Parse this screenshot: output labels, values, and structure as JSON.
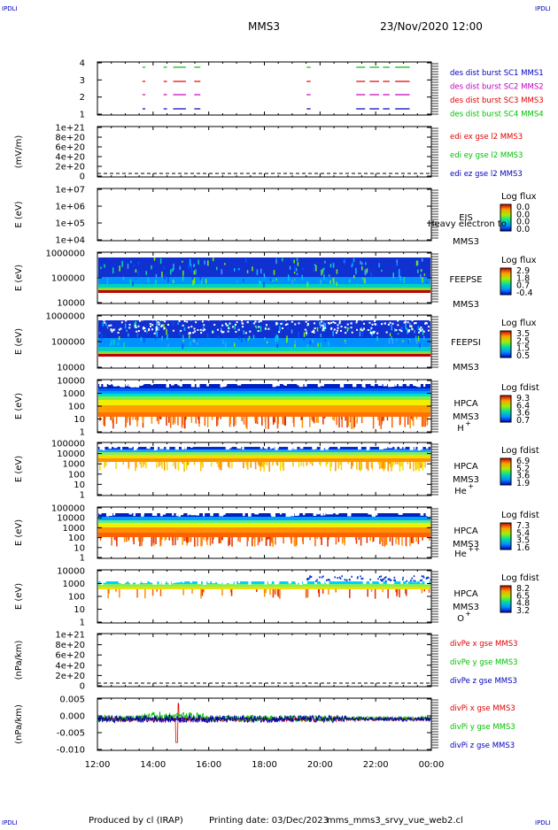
{
  "header": {
    "corner_tl": "IPDLI",
    "corner_tr": "IPDLI",
    "corner_bl": "IPDLI",
    "corner_br": "IPDLI",
    "mission": "MMS3",
    "datetime": "23/Nov/2020 12:00"
  },
  "footer": {
    "produced_by": "Produced by cl (IRAP)",
    "printing_date": "Printing date: 03/Dec/2023",
    "script_name": "mms_mms3_srvy_vue_web2.cl"
  },
  "colors": {
    "red": "#e00000",
    "green": "#00c000",
    "blue": "#0000c0",
    "magenta": "#c000c0"
  },
  "chart_data": [
    {
      "type": "line",
      "panel": "burst-availability",
      "ylabel": "",
      "y_ticks": [
        "1",
        "2",
        "3",
        "4"
      ],
      "xlim": [
        "12:00",
        "00:00"
      ],
      "legend": [
        {
          "label": "des dist burst SC1 MMS1",
          "color": "#0000c0"
        },
        {
          "label": "des dist burst SC2 MMS2",
          "color": "#c000c0"
        },
        {
          "label": "des dist burst SC3 MMS3",
          "color": "#e00000"
        },
        {
          "label": "des dist burst SC4 MMS4",
          "color": "#00c000"
        }
      ],
      "segments_hours": [
        [
          13.62,
          13.72
        ],
        [
          14.38,
          14.5
        ],
        [
          14.72,
          15.18
        ],
        [
          15.48,
          15.7
        ],
        [
          19.52,
          19.66
        ],
        [
          21.3,
          21.62
        ],
        [
          21.78,
          22.12
        ],
        [
          22.26,
          22.5
        ],
        [
          22.7,
          23.22
        ]
      ]
    },
    {
      "type": "line",
      "panel": "edi-e-field",
      "ylabel": "(mV/m)",
      "y_ticks": [
        "0",
        "2e+20",
        "4e+20",
        "6e+20",
        "8e+20",
        "1e+21"
      ],
      "legend": [
        {
          "label": "edi ex gse l2 MMS3",
          "color": "#e00000"
        },
        {
          "label": "edi ey gse l2 MMS3",
          "color": "#00c000"
        },
        {
          "label": "edi ez gse l2 MMS3",
          "color": "#0000c0"
        }
      ]
    },
    {
      "type": "heatmap",
      "panel": "eis",
      "ylabel": "E (eV)",
      "y_ticks": [
        "1e+04",
        "1e+05",
        "1e+06",
        "1e+07"
      ],
      "scale": "log",
      "labels": [
        "EIS",
        "MMS3"
      ],
      "overlay_text": "Heavy electron to",
      "colorbar_title": "Log flux",
      "colorbar_ticks": [
        "0.0",
        "0.0",
        "0.0",
        "0.0"
      ]
    },
    {
      "type": "heatmap",
      "panel": "feeps-e",
      "ylabel": "E (eV)",
      "y_ticks": [
        "10000",
        "100000",
        "1000000"
      ],
      "scale": "log",
      "labels": [
        "FEEPSE",
        "MMS3"
      ],
      "colorbar_title": "Log flux",
      "colorbar_ticks": [
        "2.9",
        "1.8",
        "0.7",
        "-0.4"
      ]
    },
    {
      "type": "heatmap",
      "panel": "feeps-i",
      "ylabel": "E (eV)",
      "y_ticks": [
        "10000",
        "100000",
        "1000000"
      ],
      "scale": "log",
      "labels": [
        "FEEPSI",
        "MMS3"
      ],
      "colorbar_title": "Log flux",
      "colorbar_ticks": [
        "3.5",
        "2.5",
        "1.5",
        "0.5"
      ]
    },
    {
      "type": "heatmap",
      "panel": "hpca-h",
      "ylabel": "E (eV)",
      "y_ticks": [
        "1",
        "10",
        "100",
        "1000",
        "10000"
      ],
      "scale": "log",
      "labels": [
        "HPCA",
        "MMS3",
        "H",
        "+"
      ],
      "colorbar_title": "Log fdist",
      "colorbar_ticks": [
        "9.3",
        "6.4",
        "3.6",
        "0.7"
      ]
    },
    {
      "type": "heatmap",
      "panel": "hpca-he",
      "ylabel": "E (eV)",
      "y_ticks": [
        "1",
        "10",
        "100",
        "1000",
        "10000",
        "100000"
      ],
      "scale": "log",
      "labels": [
        "HPCA",
        "MMS3",
        "He",
        "+"
      ],
      "colorbar_title": "Log fdist",
      "colorbar_ticks": [
        "6.9",
        "5.2",
        "3.6",
        "1.9"
      ]
    },
    {
      "type": "heatmap",
      "panel": "hpca-hepp",
      "ylabel": "E (eV)",
      "y_ticks": [
        "1",
        "10",
        "100",
        "1000",
        "10000",
        "100000"
      ],
      "scale": "log",
      "labels": [
        "HPCA",
        "MMS3",
        "He",
        "++"
      ],
      "colorbar_title": "Log fdist",
      "colorbar_ticks": [
        "7.3",
        "5.4",
        "3.5",
        "1.6"
      ]
    },
    {
      "type": "heatmap",
      "panel": "hpca-o",
      "ylabel": "E (eV)",
      "y_ticks": [
        "1",
        "10",
        "100",
        "1000",
        "10000"
      ],
      "scale": "log",
      "labels": [
        "HPCA",
        "MMS3",
        "O",
        "+"
      ],
      "colorbar_title": "Log fdist",
      "colorbar_ticks": [
        "8.2",
        "6.5",
        "4.8",
        "3.2"
      ]
    },
    {
      "type": "line",
      "panel": "divpe",
      "ylabel": "(nPa/km)",
      "y_ticks": [
        "0",
        "2e+20",
        "4e+20",
        "6e+20",
        "8e+20",
        "1e+21"
      ],
      "legend": [
        {
          "label": "divPe x gse MMS3",
          "color": "#e00000"
        },
        {
          "label": "divPe y gse MMS3",
          "color": "#00c000"
        },
        {
          "label": "divPe z gse MMS3",
          "color": "#0000c0"
        }
      ]
    },
    {
      "type": "line",
      "panel": "divpi",
      "ylabel": "(nPa/km)",
      "y_ticks": [
        "-0.010",
        "-0.005",
        "0.000",
        "0.005"
      ],
      "ylim": [
        -0.012,
        0.008
      ],
      "x_ticks": [
        "12:00",
        "14:00",
        "16:00",
        "18:00",
        "20:00",
        "22:00",
        "00:00"
      ],
      "legend": [
        {
          "label": "divPi x gse MMS3",
          "color": "#e00000"
        },
        {
          "label": "divPi y gse MMS3",
          "color": "#00c000"
        },
        {
          "label": "divPi z gse MMS3",
          "color": "#0000c0"
        }
      ]
    }
  ]
}
